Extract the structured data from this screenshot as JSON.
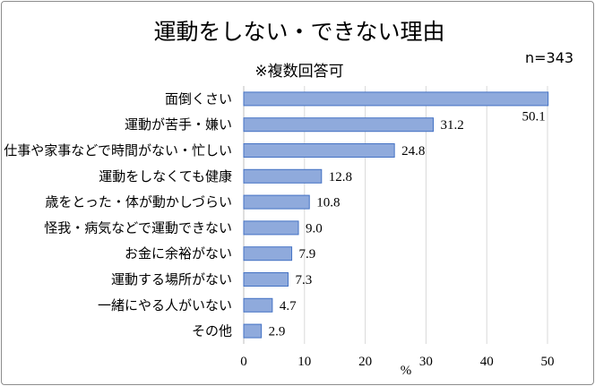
{
  "chart_data": {
    "type": "bar",
    "orientation": "horizontal",
    "title": "運動をしない・できない理由",
    "subtitle": "※複数回答可",
    "n_label": "n=343",
    "xlabel": "%",
    "xlim": [
      0,
      50
    ],
    "xticks": [
      "0",
      "10",
      "20",
      "30",
      "40",
      "50"
    ],
    "grid": true,
    "bar_color": "#8faadc",
    "bar_border": "#4472c4",
    "categories": [
      "面倒くさい",
      "運動が苦手・嫌い",
      "仕事や家事などで時間がない・忙しい",
      "運動をしなくても健康",
      "歳をとった・体が動かしづらい",
      "怪我・病気などで運動できない",
      "お金に余裕がない",
      "運動する場所がない",
      "一緒にやる人がいない",
      "その他"
    ],
    "values": [
      50.1,
      31.2,
      24.8,
      12.8,
      10.8,
      9.0,
      7.9,
      7.3,
      4.7,
      2.9
    ],
    "value_labels": [
      "50.1",
      "31.2",
      "24.8",
      "12.8",
      "10.8",
      "9.0",
      "7.9",
      "7.3",
      "4.7",
      "2.9"
    ]
  }
}
